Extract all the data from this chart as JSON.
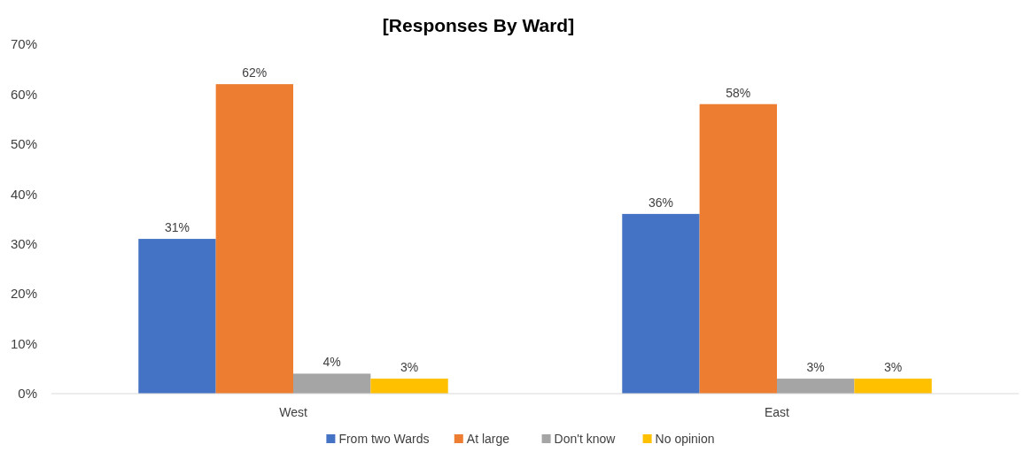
{
  "chart_data": {
    "type": "bar",
    "title": "[Responses By Ward]",
    "categories": [
      "West",
      "East"
    ],
    "series": [
      {
        "name": "From two Wards",
        "color": "#4472c4",
        "values": [
          31,
          36
        ],
        "value_labels": [
          "31%",
          "36%"
        ]
      },
      {
        "name": "At large",
        "color": "#ed7d31",
        "values": [
          62,
          58
        ],
        "value_labels": [
          "62%",
          "58%"
        ]
      },
      {
        "name": "Don't know",
        "color": "#a5a5a5",
        "values": [
          4,
          3
        ],
        "value_labels": [
          "4%",
          "3%"
        ]
      },
      {
        "name": "No opinion",
        "color": "#ffc000",
        "values": [
          3,
          3
        ],
        "value_labels": [
          "3%",
          "3%"
        ]
      }
    ],
    "ylim": [
      0,
      70
    ],
    "yticks": [
      {
        "value": 0,
        "label": "0%"
      },
      {
        "value": 10,
        "label": "10%"
      },
      {
        "value": 20,
        "label": "20%"
      },
      {
        "value": 30,
        "label": "30%"
      },
      {
        "value": 40,
        "label": "40%"
      },
      {
        "value": 50,
        "label": "50%"
      },
      {
        "value": 60,
        "label": "60%"
      },
      {
        "value": 70,
        "label": "70%"
      }
    ],
    "grid": false,
    "legend": "bottom"
  }
}
